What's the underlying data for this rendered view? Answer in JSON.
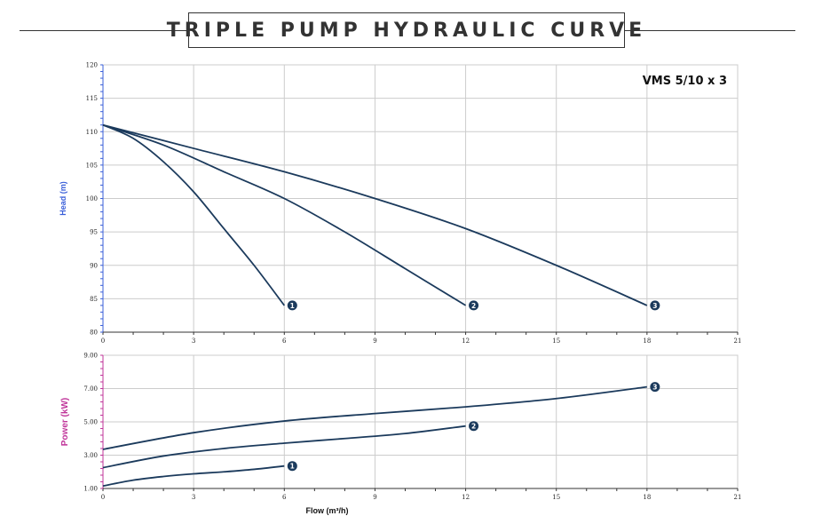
{
  "header": {
    "title": "TRIPLE PUMP HYDRAULIC CURVE"
  },
  "colors": {
    "curve": "#1b3a5c",
    "head_axis": "#3a5fd9",
    "power_axis": "#c0359a",
    "marker": "#1b3a5c",
    "grid": "#cccccc"
  },
  "chart_data": [
    {
      "type": "line",
      "title": "",
      "model_label": "VMS 5/10 x 3",
      "ylabel": "Head (m)",
      "xlabel": "",
      "xlim": [
        0,
        21
      ],
      "ylim": [
        80,
        120
      ],
      "x_ticks": [
        "0",
        "3",
        "6",
        "9",
        "12",
        "15",
        "18",
        "21"
      ],
      "y_ticks": [
        "80",
        "85",
        "90",
        "95",
        "100",
        "105",
        "110",
        "115",
        "120"
      ],
      "grid": true,
      "series": [
        {
          "marker": "1",
          "x": [
            0,
            1,
            2,
            3,
            4,
            5,
            6
          ],
          "y": [
            111,
            109,
            105.5,
            101,
            95.5,
            90,
            84
          ]
        },
        {
          "marker": "2",
          "x": [
            0,
            2,
            4,
            6,
            8,
            10,
            12
          ],
          "y": [
            111,
            108,
            104,
            100,
            95,
            89.5,
            84
          ]
        },
        {
          "marker": "3",
          "x": [
            0,
            3,
            6,
            9,
            12,
            15,
            18
          ],
          "y": [
            111,
            107.5,
            104,
            100,
            95.5,
            90,
            84
          ]
        }
      ]
    },
    {
      "type": "line",
      "title": "",
      "ylabel": "Power (kW)",
      "xlabel": "Flow (m³/h)",
      "xlim": [
        0,
        21
      ],
      "ylim": [
        1,
        9
      ],
      "x_ticks": [
        "0",
        "3",
        "6",
        "9",
        "12",
        "15",
        "18",
        "21"
      ],
      "y_ticks": [
        "1.00",
        "3.00",
        "5.00",
        "7.00",
        "9.00"
      ],
      "grid": true,
      "series": [
        {
          "marker": "1",
          "x": [
            0,
            1,
            2,
            3,
            4,
            5,
            6
          ],
          "y": [
            1.15,
            1.5,
            1.72,
            1.88,
            2.0,
            2.15,
            2.35
          ]
        },
        {
          "marker": "2",
          "x": [
            0,
            2,
            4,
            6,
            8,
            10,
            12
          ],
          "y": [
            2.25,
            2.95,
            3.4,
            3.72,
            4.0,
            4.3,
            4.75
          ]
        },
        {
          "marker": "3",
          "x": [
            0,
            3,
            6,
            9,
            12,
            15,
            18
          ],
          "y": [
            3.35,
            4.35,
            5.05,
            5.5,
            5.9,
            6.4,
            7.1
          ]
        }
      ]
    }
  ]
}
